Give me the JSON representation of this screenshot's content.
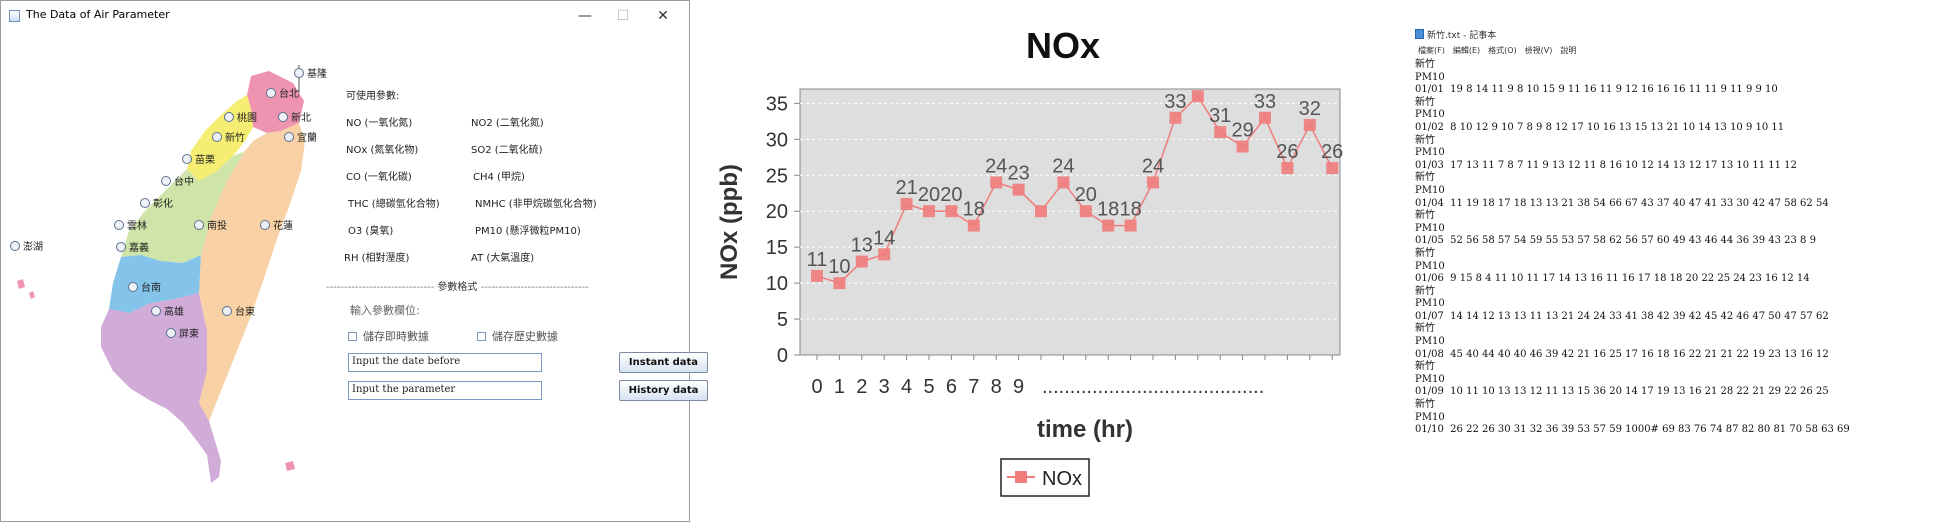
{
  "app": {
    "title": "The Data of Air Parameter",
    "window_controls": {
      "minimize": "—",
      "maximize": "☐",
      "close": "✕"
    },
    "cities": [
      {
        "id": "keelung",
        "label": "基隆"
      },
      {
        "id": "taipei",
        "label": "台北"
      },
      {
        "id": "newtaipei",
        "label": "新北"
      },
      {
        "id": "taoyuan",
        "label": "桃園"
      },
      {
        "id": "hsinchu",
        "label": "新竹"
      },
      {
        "id": "yilan",
        "label": "宜蘭"
      },
      {
        "id": "miaoli",
        "label": "苗栗"
      },
      {
        "id": "taichung",
        "label": "台中"
      },
      {
        "id": "changhua",
        "label": "彰化"
      },
      {
        "id": "yunlin",
        "label": "雲林"
      },
      {
        "id": "nantou",
        "label": "南投"
      },
      {
        "id": "hualien",
        "label": "花蓮"
      },
      {
        "id": "penghu",
        "label": "澎湖"
      },
      {
        "id": "chiayi",
        "label": "嘉義"
      },
      {
        "id": "tainan",
        "label": "台南"
      },
      {
        "id": "kaohsiung",
        "label": "高雄"
      },
      {
        "id": "taitung",
        "label": "台東"
      },
      {
        "id": "pingtung",
        "label": "屏東"
      }
    ],
    "params_header": "可使用參數:",
    "params_left": [
      "NO (一氧化氮)",
      "NOx (氮氧化物)",
      "CO (一氧化碳)",
      "THC (總碳氫化合物)",
      "O3 (臭氧)",
      "RH (相對溼度)"
    ],
    "params_right": [
      "NO2 (二氧化氮)",
      "SO2 (二氧化硫)",
      "CH4 (甲烷)",
      "NMHC (非甲烷碳氫化合物)",
      "PM10 (懸浮微粒PM10)",
      "AT (大氣溫度)"
    ],
    "format_separator": "參數格式",
    "input_label": "輸入參數欄位:",
    "checkbox_realtime": "儲存即時數據",
    "checkbox_history": "儲存歷史數據",
    "date_input_value": "Input the date before",
    "param_input_value": "Input the parameter",
    "instant_button": "Instant  data",
    "history_button": "History data"
  },
  "chart_data": {
    "type": "line",
    "title": "NOx",
    "xlabel": "time (hr)",
    "ylabel": "NOx (ppb)",
    "x_tick_labels": [
      "0",
      "1",
      "2",
      "3",
      "4",
      "5",
      "6",
      "7",
      "8",
      "9"
    ],
    "x_tick_suffix": "........................................",
    "x": [
      0,
      1,
      2,
      3,
      4,
      5,
      6,
      7,
      8,
      9,
      10,
      11,
      12,
      13,
      14,
      15,
      16,
      17,
      18,
      19,
      20,
      21,
      22,
      23
    ],
    "ylim": [
      0,
      37
    ],
    "yticks": [
      0,
      5,
      10,
      15,
      20,
      25,
      30,
      35
    ],
    "grid": true,
    "legend_position": "bottom-center",
    "series": [
      {
        "name": "NOx",
        "color": "#f07c7c",
        "values": [
          11,
          10,
          13,
          14,
          21,
          20,
          20,
          18,
          24,
          23,
          20,
          24,
          20,
          18,
          18,
          24,
          33,
          36,
          31,
          29,
          33,
          26,
          32,
          26
        ],
        "value_labels": [
          "11",
          "10",
          "13",
          "14",
          "21",
          "20",
          "20",
          "18",
          "24",
          "23",
          "",
          "24",
          "20",
          "18",
          "18",
          "24",
          "33",
          "",
          "31",
          "29",
          "33",
          "26",
          "32",
          "26"
        ]
      }
    ]
  },
  "notepad": {
    "title": "新竹.txt - 記事本",
    "menu": [
      "檔案(F)",
      "編輯(E)",
      "格式(O)",
      "檢視(V)",
      "說明"
    ],
    "lines": [
      "新竹",
      "PM10",
      "01/01  19 8 14 11 9 8 10 15 9 11 16 11 9 12 16 16 16 11 11 9 11 9 9 10",
      "新竹",
      "PM10",
      "01/02  8 10 12 9 10 7 8 9 8 12 17 10 16 13 15 13 21 10 14 13 10 9 10 11",
      "新竹",
      "PM10",
      "01/03  17 13 11 7 8 7 11 9 13 12 11 8 16 10 12 14 13 12 17 13 10 11 11 12",
      "新竹",
      "PM10",
      "01/04  11 19 18 17 18 13 13 21 38 54 66 67 43 37 40 47 41 33 30 42 47 58 62 54",
      "新竹",
      "PM10",
      "01/05  52 56 58 57 54 59 55 53 57 58 62 56 57 60 49 43 46 44 36 39 43 23 8 9",
      "新竹",
      "PM10",
      "01/06  9 15 8 4 11 10 11 17 14 13 16 11 16 17 18 18 20 22 25 24 23 16 12 14",
      "新竹",
      "PM10",
      "01/07  14 14 12 13 13 11 13 21 24 24 33 41 38 42 39 42 45 42 46 47 50 47 57 62",
      "新竹",
      "PM10",
      "01/08  45 40 44 40 40 46 39 42 21 16 25 17 16 18 16 22 21 21 22 19 23 13 16 12",
      "新竹",
      "PM10",
      "01/09  10 11 10 13 13 12 11 13 15 36 20 14 17 19 13 16 21 28 22 21 29 22 26 25",
      "新竹",
      "PM10",
      "01/10  26 22 26 30 31 32 36 39 53 57 59 1000# 69 83 76 74 87 82 80 81 70 58 63 69"
    ]
  }
}
